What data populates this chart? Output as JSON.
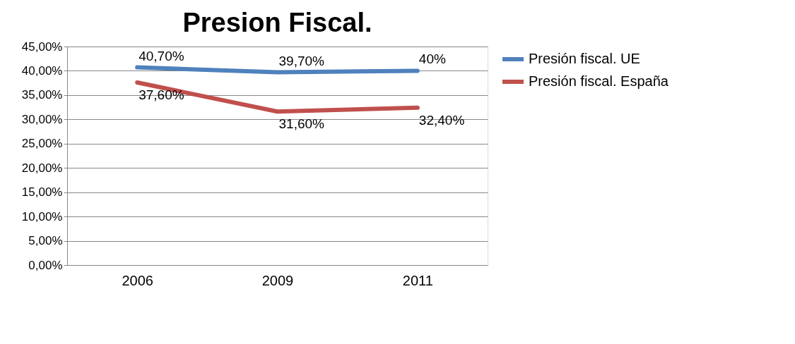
{
  "chart_data": {
    "type": "line",
    "title": "Presion Fiscal.",
    "categories": [
      "2006",
      "2009",
      "2011"
    ],
    "series": [
      {
        "name": "Presión fiscal. UE",
        "color": "#4f81bd",
        "values": [
          40.7,
          39.7,
          40
        ],
        "value_labels": [
          "40,70%",
          "39,70%",
          "40%"
        ]
      },
      {
        "name": "Presión fiscal. España",
        "color": "#c0504d",
        "values": [
          37.6,
          31.6,
          32.4
        ],
        "value_labels": [
          "37,60%",
          "31,60%",
          "32,40%"
        ]
      }
    ],
    "ylim": [
      0,
      45
    ],
    "yticks": [
      {
        "value": 0,
        "label": "0,00%"
      },
      {
        "value": 5,
        "label": "5,00%"
      },
      {
        "value": 10,
        "label": "10,00%"
      },
      {
        "value": 15,
        "label": "15,00%"
      },
      {
        "value": 20,
        "label": "20,00%"
      },
      {
        "value": 25,
        "label": "25,00%"
      },
      {
        "value": 30,
        "label": "30,00%"
      },
      {
        "value": 35,
        "label": "35,00%"
      },
      {
        "value": 40,
        "label": "40,00%"
      },
      {
        "value": 45,
        "label": "45,00%"
      }
    ],
    "grid": "y",
    "legend": "right",
    "marker": "none",
    "line_style": "solid"
  }
}
